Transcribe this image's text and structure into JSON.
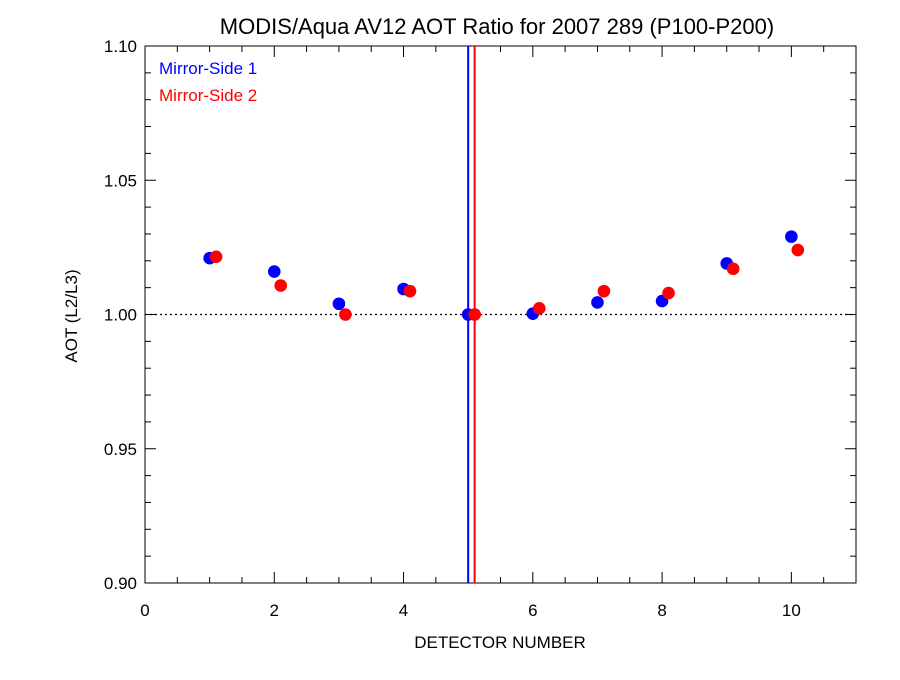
{
  "chart_data": {
    "type": "scatter",
    "title": "MODIS/Aqua AV12 AOT Ratio for 2007 289 (P100-P200)",
    "xlabel": "DETECTOR NUMBER",
    "ylabel": "AOT (L2/L3)",
    "xlim": [
      0,
      11
    ],
    "ylim": [
      0.9,
      1.1
    ],
    "xticks": [
      0,
      2,
      4,
      6,
      8,
      10
    ],
    "xtick_labels": [
      "0",
      "2",
      "4",
      "6",
      "8",
      "10"
    ],
    "yticks": [
      0.9,
      0.95,
      1.0,
      1.05,
      1.1
    ],
    "ytick_labels": [
      "0.90",
      "0.95",
      "1.00",
      "1.05",
      "1.10"
    ],
    "grid": false,
    "legend_position": "top-left",
    "reference_line": {
      "y": 1.0,
      "style": "dotted"
    },
    "vertical_lines": [
      {
        "x": 5.0,
        "color": "#0000ff"
      },
      {
        "x": 5.1,
        "color": "#ff0000"
      }
    ],
    "series": [
      {
        "name": "Mirror-Side 1",
        "color": "#0000ff",
        "x": [
          1,
          2,
          3,
          4,
          5,
          6,
          7,
          8,
          9,
          10
        ],
        "y": [
          1.021,
          1.016,
          1.004,
          1.0095,
          1.0,
          1.0003,
          1.0045,
          1.005,
          1.019,
          1.029
        ]
      },
      {
        "name": "Mirror-Side 2",
        "color": "#ff0000",
        "x": [
          1.1,
          2.1,
          3.1,
          4.1,
          5.1,
          6.1,
          7.1,
          8.1,
          9.1,
          10.1
        ],
        "y": [
          1.0215,
          1.0108,
          1.0,
          1.0087,
          1.0,
          1.0023,
          1.0087,
          1.008,
          1.017,
          1.024
        ]
      }
    ]
  }
}
